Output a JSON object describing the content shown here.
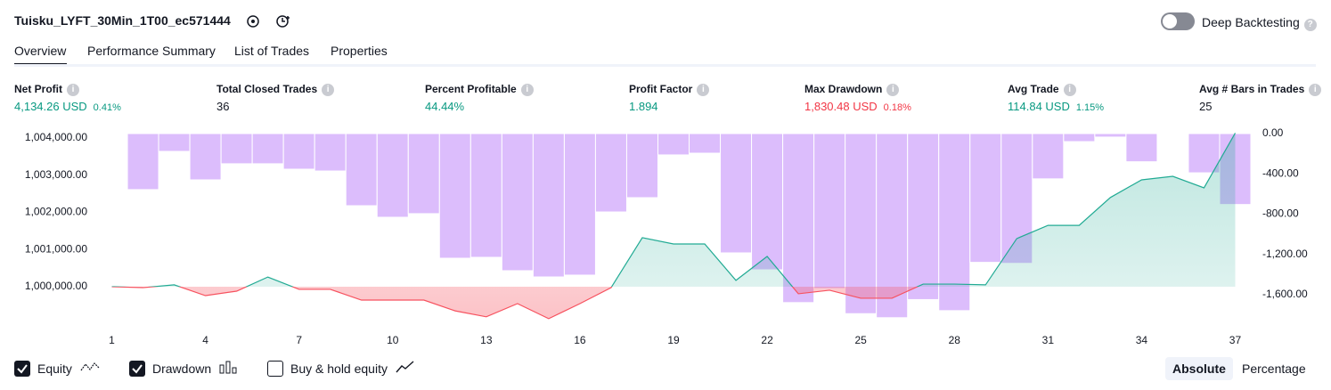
{
  "header": {
    "title": "Tuisku_LYFT_30Min_1T00_ec571444",
    "deep_backtesting": "Deep Backtesting",
    "deep_backtesting_on": false
  },
  "tabs": [
    "Overview",
    "Performance Summary",
    "List of Trades",
    "Properties"
  ],
  "active_tab": 0,
  "metrics": [
    {
      "label": "Net Profit",
      "value": "4,134.26 USD",
      "percent": "0.41%",
      "tone": "positive"
    },
    {
      "label": "Total Closed Trades",
      "value": "36",
      "tone": "neutral"
    },
    {
      "label": "Percent Profitable",
      "value": "44.44%",
      "tone": "positive"
    },
    {
      "label": "Profit Factor",
      "value": "1.894",
      "tone": "positive"
    },
    {
      "label": "Max Drawdown",
      "value": "1,830.48 USD",
      "percent": "0.18%",
      "tone": "negative"
    },
    {
      "label": "Avg Trade",
      "value": "114.84 USD",
      "percent": "1.15%",
      "tone": "positive"
    },
    {
      "label": "Avg # Bars in Trades",
      "value": "25",
      "tone": "neutral"
    }
  ],
  "chart_data": {
    "type": "line",
    "x": [
      1,
      2,
      3,
      4,
      5,
      6,
      7,
      8,
      9,
      10,
      11,
      12,
      13,
      14,
      15,
      16,
      17,
      18,
      19,
      20,
      21,
      22,
      23,
      24,
      25,
      26,
      27,
      28,
      29,
      30,
      31,
      32,
      33,
      34,
      35,
      36,
      37
    ],
    "xlim": [
      0.5,
      37.5
    ],
    "xticks": [
      1,
      4,
      7,
      10,
      13,
      16,
      19,
      22,
      25,
      28,
      31,
      34,
      37
    ],
    "series": [
      {
        "name": "Equity",
        "axis": "y",
        "color": "#22ab94",
        "negative_color": "#f7525f",
        "visible": true,
        "values": [
          1000000,
          999975,
          1000050,
          999760,
          999880,
          1000260,
          999930,
          999930,
          999640,
          999640,
          999640,
          999350,
          999190,
          999545,
          999140,
          999545,
          999975,
          1001320,
          1001150,
          1001150,
          1000170,
          1000815,
          999810,
          999905,
          999690,
          999690,
          1000070,
          1000070,
          1000050,
          1001295,
          1001650,
          1001650,
          1002400,
          1002875,
          1002970,
          1002660,
          1004134
        ]
      },
      {
        "name": "Drawdown",
        "axis": "y2",
        "type": "bar",
        "color": "#dcbdfc",
        "visible": true,
        "values": [
          -5,
          -557,
          -177,
          -460,
          -300,
          -300,
          -354,
          -372,
          -717,
          -832,
          -796,
          -1239,
          -1230,
          -1363,
          -1425,
          -1407,
          -779,
          -637,
          -212,
          -195,
          -1186,
          -1354,
          -1680,
          -1540,
          -1790,
          -1830,
          -1650,
          -1760,
          -1280,
          -1290,
          -450,
          -80,
          -35,
          -280,
          -5,
          -390,
          -705
        ]
      }
    ],
    "baseline": 1000000,
    "ylim": [
      998850,
      1004120
    ],
    "yticks": [
      {
        "value": 1000000,
        "label": "1,000,000.00"
      },
      {
        "value": 1001000,
        "label": "1,001,000.00"
      },
      {
        "value": 1002000,
        "label": "1,002,000.00"
      },
      {
        "value": 1003000,
        "label": "1,003,000.00"
      },
      {
        "value": 1004000,
        "label": "1,004,000.00"
      }
    ],
    "y2lim": [
      -1947,
      0
    ],
    "y2ticks": [
      {
        "value": 0,
        "label": "0.00"
      },
      {
        "value": -400,
        "label": "-400.00"
      },
      {
        "value": -800,
        "label": "-800.00"
      },
      {
        "value": -1200,
        "label": "-1,200.00"
      },
      {
        "value": -1600,
        "label": "-1,600.00"
      }
    ],
    "buy_hold": {
      "label": "Buy & hold equity",
      "visible": false
    }
  },
  "scale_buttons": [
    "Absolute",
    "Percentage"
  ],
  "active_scale": 0
}
